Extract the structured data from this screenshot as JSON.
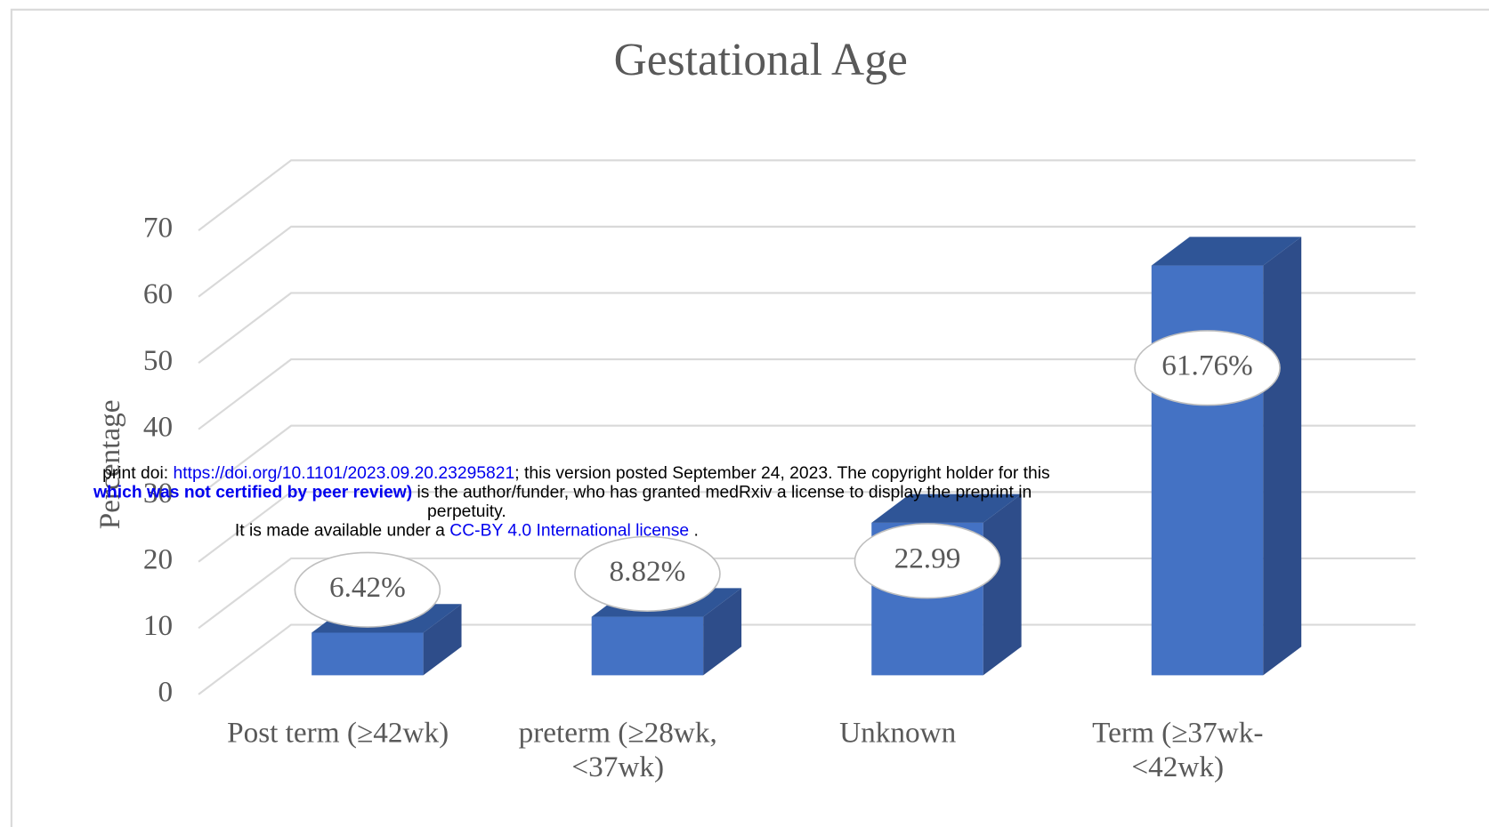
{
  "chart_data": {
    "type": "bar3d",
    "title": "Gestational Age",
    "y_label": "Percentage",
    "categories": [
      "Post term (≥42wk)",
      "preterm (≥28wk, <37wk)",
      "Unknown",
      "Term (≥37wk-<42wk)"
    ],
    "values": [
      6.42,
      8.82,
      22.99,
      61.76
    ],
    "value_labels": [
      "6.42%",
      "8.82%",
      "22.99",
      "61.76%"
    ],
    "color": "#4472c4",
    "ylim": [
      0,
      70
    ],
    "yticks": [
      0,
      10,
      20,
      30,
      40,
      50,
      60,
      70
    ],
    "grid": true
  },
  "watermark": {
    "line1": [
      "print doi: ",
      "https://doi.org/10.1101/2023.09.20.23295821",
      "; this version posted September 24, 2023. The copyright holder for this"
    ],
    "line2": [
      "which was not certified by peer review)",
      " is the author/funder, who has granted medRxiv a license to display the preprint in"
    ],
    "line3": "perpetuity.",
    "line4": [
      "It is made available under a ",
      "CC-BY 4.0 International license",
      " ."
    ]
  }
}
